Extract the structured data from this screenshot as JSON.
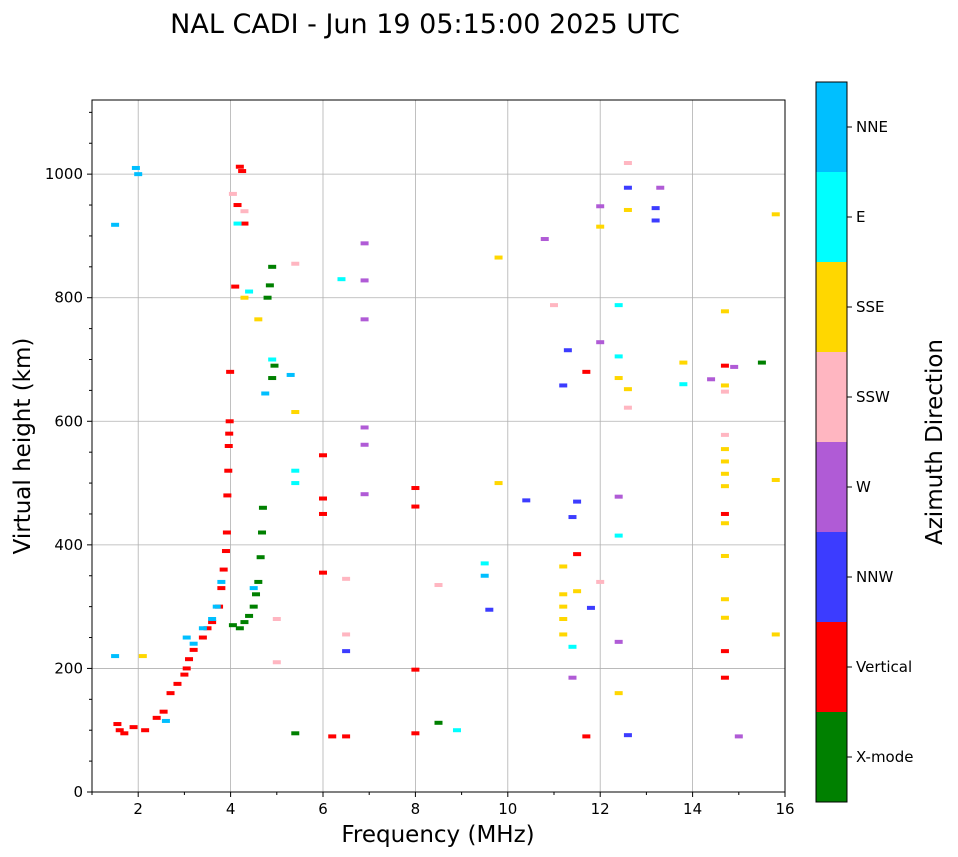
{
  "chart_data": {
    "type": "scatter",
    "title": "NAL CADI - Jun 19 05:15:00 2025 UTC",
    "xlabel": "Frequency (MHz)",
    "ylabel": "Virtual height (km)",
    "xlim": [
      1,
      16
    ],
    "ylim": [
      0,
      1120
    ],
    "xticks": [
      "2",
      "4",
      "6",
      "8",
      "10",
      "12",
      "14",
      "16"
    ],
    "xtick_values": [
      2,
      4,
      6,
      8,
      10,
      12,
      14,
      16
    ],
    "yticks": [
      "0",
      "200",
      "400",
      "600",
      "800",
      "1000"
    ],
    "ytick_values": [
      0,
      200,
      400,
      600,
      800,
      1000
    ],
    "grid": true,
    "colorbar": {
      "label": "Azimuth Direction",
      "categories": [
        {
          "name": "X-mode",
          "color": "#008000"
        },
        {
          "name": "Vertical",
          "color": "#ff0000"
        },
        {
          "name": "NNW",
          "color": "#3c3cff"
        },
        {
          "name": "W",
          "color": "#b05bd6"
        },
        {
          "name": "SSW",
          "color": "#ffb6c1"
        },
        {
          "name": "SSE",
          "color": "#ffd700"
        },
        {
          "name": "E",
          "color": "#00ffff"
        },
        {
          "name": "NNE",
          "color": "#00bfff"
        }
      ]
    },
    "series": [
      {
        "name": "Vertical",
        "points": [
          [
            1.55,
            110
          ],
          [
            1.6,
            100
          ],
          [
            1.7,
            95
          ],
          [
            1.9,
            105
          ],
          [
            2.15,
            100
          ],
          [
            2.4,
            120
          ],
          [
            2.55,
            130
          ],
          [
            2.7,
            160
          ],
          [
            2.85,
            175
          ],
          [
            3.0,
            190
          ],
          [
            3.05,
            200
          ],
          [
            3.1,
            215
          ],
          [
            3.2,
            230
          ],
          [
            3.4,
            250
          ],
          [
            3.5,
            265
          ],
          [
            3.6,
            275
          ],
          [
            3.75,
            300
          ],
          [
            3.8,
            330
          ],
          [
            3.85,
            360
          ],
          [
            3.9,
            390
          ],
          [
            3.92,
            420
          ],
          [
            3.93,
            480
          ],
          [
            3.95,
            520
          ],
          [
            3.96,
            560
          ],
          [
            3.97,
            580
          ],
          [
            3.98,
            600
          ],
          [
            3.99,
            680
          ],
          [
            4.1,
            818
          ],
          [
            4.15,
            950
          ],
          [
            4.25,
            1005
          ],
          [
            4.2,
            1012
          ],
          [
            4.3,
            920
          ],
          [
            6.0,
            545
          ],
          [
            6.0,
            475
          ],
          [
            6.0,
            450
          ],
          [
            6.0,
            355
          ],
          [
            6.2,
            90
          ],
          [
            6.5,
            90
          ],
          [
            8.0,
            492
          ],
          [
            8.0,
            462
          ],
          [
            8.0,
            198
          ],
          [
            8.0,
            95
          ],
          [
            11.5,
            385
          ],
          [
            11.7,
            680
          ],
          [
            11.7,
            90
          ],
          [
            14.7,
            690
          ],
          [
            14.7,
            450
          ],
          [
            14.7,
            228
          ],
          [
            14.7,
            185
          ]
        ]
      },
      {
        "name": "X-mode",
        "points": [
          [
            4.05,
            270
          ],
          [
            4.2,
            265
          ],
          [
            4.3,
            275
          ],
          [
            4.4,
            285
          ],
          [
            4.5,
            300
          ],
          [
            4.55,
            320
          ],
          [
            4.6,
            340
          ],
          [
            4.65,
            380
          ],
          [
            4.68,
            420
          ],
          [
            4.7,
            460
          ],
          [
            4.8,
            800
          ],
          [
            4.85,
            820
          ],
          [
            4.9,
            850
          ],
          [
            4.95,
            690
          ],
          [
            4.9,
            670
          ],
          [
            5.4,
            95
          ],
          [
            8.5,
            112
          ],
          [
            15.5,
            695
          ]
        ]
      },
      {
        "name": "NNE",
        "points": [
          [
            1.5,
            220
          ],
          [
            1.5,
            918
          ],
          [
            1.95,
            1010
          ],
          [
            2.0,
            1000
          ],
          [
            2.6,
            115
          ],
          [
            3.05,
            250
          ],
          [
            3.2,
            240
          ],
          [
            3.4,
            265
          ],
          [
            3.6,
            280
          ],
          [
            3.7,
            300
          ],
          [
            3.8,
            340
          ],
          [
            4.5,
            330
          ],
          [
            4.75,
            645
          ],
          [
            5.3,
            675
          ],
          [
            9.5,
            350
          ]
        ]
      },
      {
        "name": "NNW",
        "points": [
          [
            11.5,
            470
          ],
          [
            11.4,
            445
          ],
          [
            11.3,
            715
          ],
          [
            11.2,
            658
          ],
          [
            11.8,
            298
          ],
          [
            12.6,
            978
          ],
          [
            12.6,
            92
          ],
          [
            13.2,
            945
          ],
          [
            13.2,
            925
          ],
          [
            10.4,
            472
          ],
          [
            6.5,
            228
          ],
          [
            9.6,
            295
          ]
        ]
      },
      {
        "name": "W",
        "points": [
          [
            6.9,
            888
          ],
          [
            6.9,
            828
          ],
          [
            6.9,
            765
          ],
          [
            6.9,
            590
          ],
          [
            6.9,
            562
          ],
          [
            6.9,
            482
          ],
          [
            10.8,
            895
          ],
          [
            12.0,
            948
          ],
          [
            12.0,
            728
          ],
          [
            12.4,
            478
          ],
          [
            12.4,
            243
          ],
          [
            13.3,
            978
          ],
          [
            14.4,
            668
          ],
          [
            14.9,
            688
          ],
          [
            15.0,
            90
          ],
          [
            11.4,
            185
          ]
        ]
      },
      {
        "name": "SSW",
        "points": [
          [
            4.05,
            968
          ],
          [
            4.3,
            940
          ],
          [
            5.4,
            855
          ],
          [
            5.0,
            280
          ],
          [
            5.0,
            210
          ],
          [
            6.5,
            255
          ],
          [
            6.5,
            345
          ],
          [
            8.5,
            335
          ],
          [
            11.0,
            788
          ],
          [
            12.6,
            1018
          ],
          [
            12.6,
            622
          ],
          [
            14.7,
            578
          ],
          [
            14.7,
            648
          ],
          [
            12.0,
            340
          ]
        ]
      },
      {
        "name": "SSE",
        "points": [
          [
            2.1,
            220
          ],
          [
            4.3,
            800
          ],
          [
            4.6,
            765
          ],
          [
            5.4,
            615
          ],
          [
            9.8,
            500
          ],
          [
            9.8,
            865
          ],
          [
            11.2,
            365
          ],
          [
            11.2,
            320
          ],
          [
            11.2,
            300
          ],
          [
            11.2,
            280
          ],
          [
            11.2,
            255
          ],
          [
            11.5,
            325
          ],
          [
            12.0,
            915
          ],
          [
            12.4,
            670
          ],
          [
            12.6,
            652
          ],
          [
            12.6,
            942
          ],
          [
            13.8,
            695
          ],
          [
            14.7,
            778
          ],
          [
            14.7,
            658
          ],
          [
            14.7,
            555
          ],
          [
            14.7,
            535
          ],
          [
            14.7,
            515
          ],
          [
            14.7,
            495
          ],
          [
            14.7,
            435
          ],
          [
            14.7,
            382
          ],
          [
            14.7,
            312
          ],
          [
            14.7,
            282
          ],
          [
            15.8,
            935
          ],
          [
            15.8,
            505
          ],
          [
            15.8,
            255
          ],
          [
            12.4,
            160
          ]
        ]
      },
      {
        "name": "E",
        "points": [
          [
            4.15,
            920
          ],
          [
            4.4,
            810
          ],
          [
            4.9,
            700
          ],
          [
            5.4,
            520
          ],
          [
            5.4,
            500
          ],
          [
            6.4,
            830
          ],
          [
            8.9,
            100
          ],
          [
            9.5,
            370
          ],
          [
            12.4,
            788
          ],
          [
            12.4,
            705
          ],
          [
            12.4,
            415
          ],
          [
            13.8,
            660
          ],
          [
            11.4,
            235
          ]
        ]
      }
    ]
  }
}
